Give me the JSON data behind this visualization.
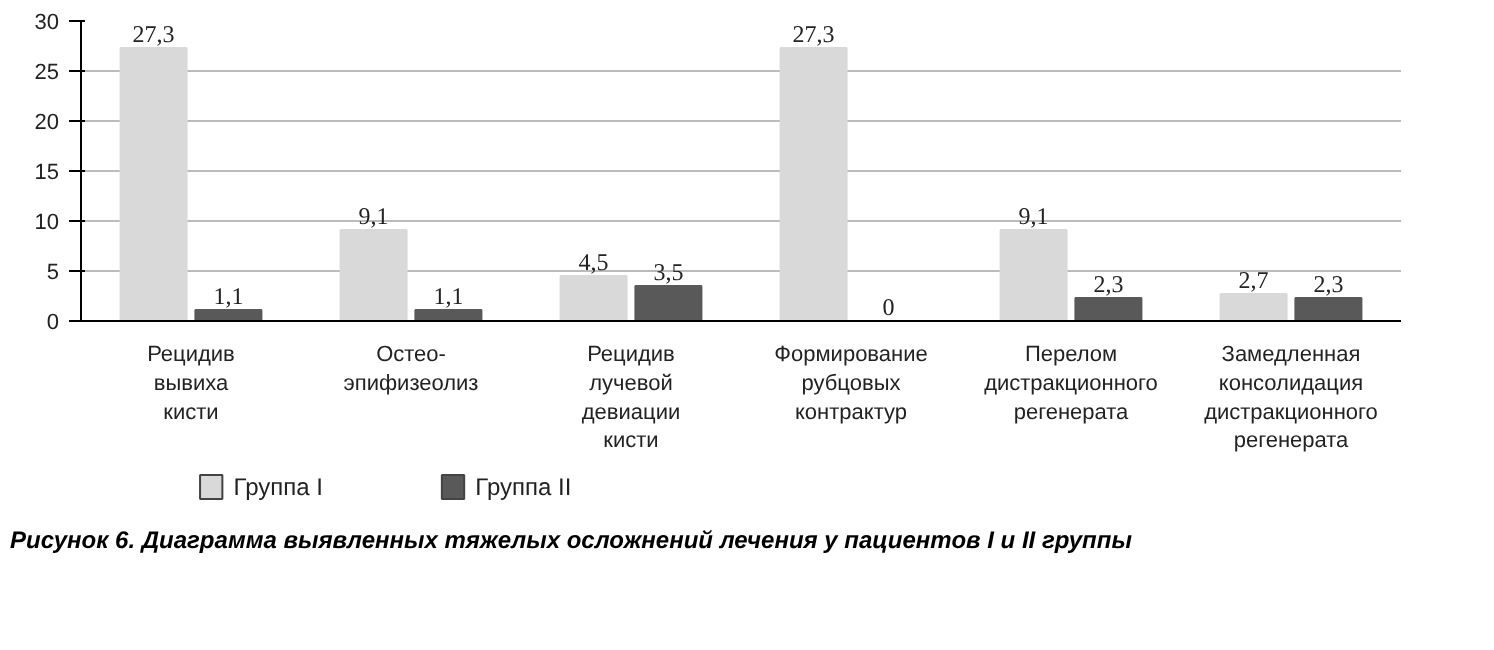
{
  "chart_data": {
    "type": "bar",
    "categories": [
      "Рецидив\nвывиха\nкисти",
      "Остео-\nэпифизеолиз",
      "Рецидив\nлучевой\nдевиации\nкисти",
      "Формирование\nрубцовых\nконтрактур",
      "Перелом\nдистракционного\nрегенерата",
      "Замедленная\nконсолидация\nдистракционного\nрегенерата"
    ],
    "series": [
      {
        "name": "Группа I",
        "color": "#d9d9d9",
        "values": [
          27.3,
          9.1,
          4.5,
          27.3,
          9.1,
          2.7
        ],
        "value_labels": [
          "27,3",
          "9,1",
          "4,5",
          "27,3",
          "9,1",
          "2,7"
        ]
      },
      {
        "name": "Группа II",
        "color": "#595959",
        "values": [
          1.1,
          1.1,
          3.5,
          0,
          2.3,
          2.3
        ],
        "value_labels": [
          "1,1",
          "1,1",
          "3,5",
          "0",
          "2,3",
          "2,3"
        ]
      }
    ],
    "ylim": [
      0,
      30
    ],
    "yticks": [
      0,
      5,
      10,
      15,
      20,
      25,
      30
    ],
    "grid": "y",
    "legend": "bottom",
    "annotations": [
      "Рисунок 6. Диаграмма выявленных тяжелых осложнений лечения у пациентов I и II группы"
    ]
  }
}
